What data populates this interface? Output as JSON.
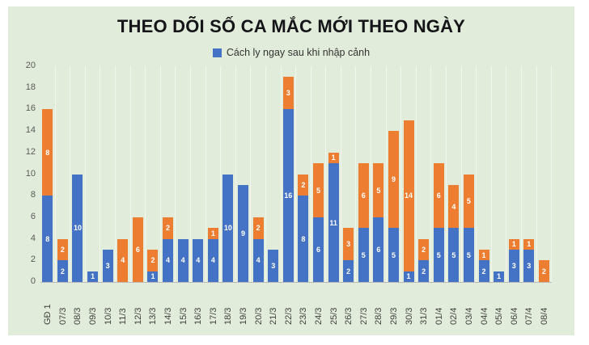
{
  "chart_data": {
    "type": "bar",
    "stacked": true,
    "title": "THEO DÕI SỐ CA MẮC MỚI THEO NGÀY",
    "legend_position": "top",
    "legend": [
      {
        "label": "Cách ly ngay sau khi nhập cảnh",
        "color": "#4472c4"
      }
    ],
    "categories": [
      "GĐ 1",
      "07/3",
      "08/3",
      "09/3",
      "10/3",
      "11/3",
      "12/3",
      "13/3",
      "14/3",
      "15/3",
      "16/3",
      "17/3",
      "18/3",
      "19/3",
      "20/3",
      "21/3",
      "22/3",
      "23/3",
      "24/3",
      "25/3",
      "26/3",
      "27/3",
      "28/3",
      "29/3",
      "30/3",
      "31/3",
      "01/4",
      "02/4",
      "03/4",
      "04/4",
      "05/4",
      "06/4",
      "07/4",
      "08/4"
    ],
    "series": [
      {
        "name": "Cách ly ngay sau khi nhập cảnh",
        "color": "#4472c4",
        "values": [
          8,
          2,
          10,
          1,
          3,
          0,
          0,
          1,
          4,
          4,
          4,
          4,
          10,
          9,
          4,
          3,
          16,
          8,
          6,
          11,
          2,
          5,
          6,
          5,
          1,
          2,
          5,
          5,
          5,
          2,
          1,
          3,
          3,
          0
        ]
      },
      {
        "name": "",
        "color": "#ed7d31",
        "values": [
          8,
          2,
          0,
          0,
          0,
          4,
          6,
          2,
          2,
          0,
          0,
          1,
          0,
          0,
          2,
          0,
          3,
          2,
          5,
          1,
          3,
          6,
          5,
          9,
          14,
          2,
          6,
          4,
          5,
          1,
          0,
          1,
          1,
          2
        ]
      }
    ],
    "ylim": [
      0,
      20
    ],
    "ytick_step": 2,
    "grid": "vertical-faint",
    "data_label_color": "#ffffff",
    "background_color": "#e2ecda"
  }
}
